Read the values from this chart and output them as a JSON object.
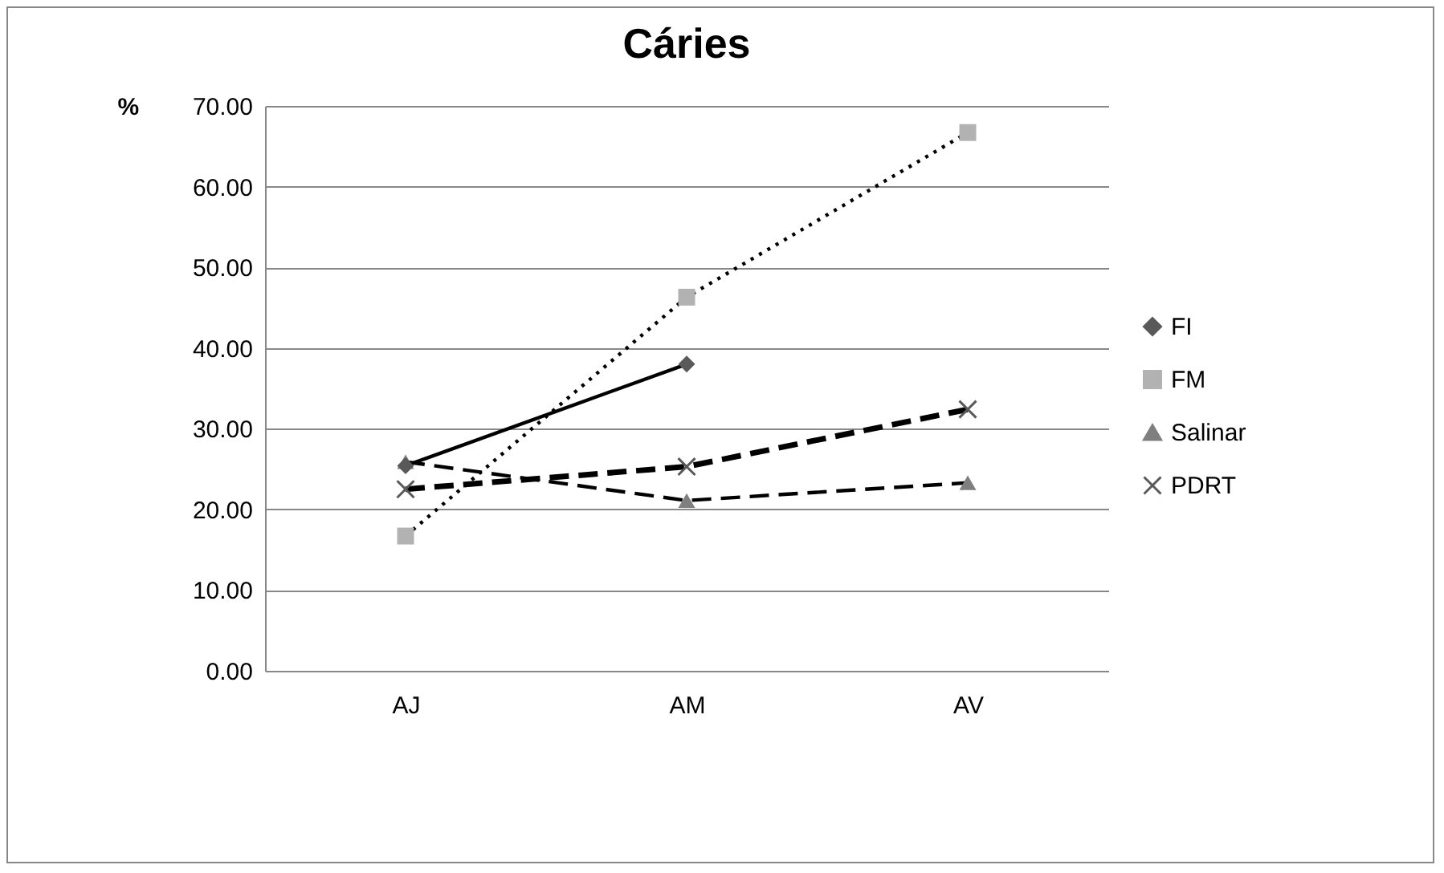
{
  "chart_data": {
    "type": "line",
    "title": "Cáries",
    "ylabel": "%",
    "categories": [
      "AJ",
      "AM",
      "AV"
    ],
    "series": [
      {
        "name": "FI",
        "color": "#595959",
        "marker": "diamond",
        "line_style": "solid",
        "values": [
          25.4,
          38.0,
          null
        ]
      },
      {
        "name": "FM",
        "color": "#b2b2b2",
        "marker": "square",
        "line_style": "dotted",
        "values": [
          16.7,
          46.3,
          66.7
        ]
      },
      {
        "name": "Salinar",
        "color": "#7f7f7f",
        "marker": "triangle",
        "line_style": "dashed",
        "values": [
          25.9,
          21.1,
          23.3
        ]
      },
      {
        "name": "PDRT",
        "color": "#595959",
        "marker": "cross",
        "line_style": "dashed",
        "values": [
          22.5,
          25.3,
          32.4
        ]
      }
    ],
    "ylim": [
      0,
      70
    ],
    "yticks": [
      {
        "value": 0,
        "label": "0.00"
      },
      {
        "value": 10,
        "label": "10.00"
      },
      {
        "value": 20,
        "label": "20.00"
      },
      {
        "value": 30,
        "label": "30.00"
      },
      {
        "value": 40,
        "label": "40.00"
      },
      {
        "value": 50,
        "label": "50.00"
      },
      {
        "value": 60,
        "label": "60.00"
      },
      {
        "value": 70,
        "label": "70.00"
      }
    ],
    "grid": "y",
    "legend": "right"
  }
}
